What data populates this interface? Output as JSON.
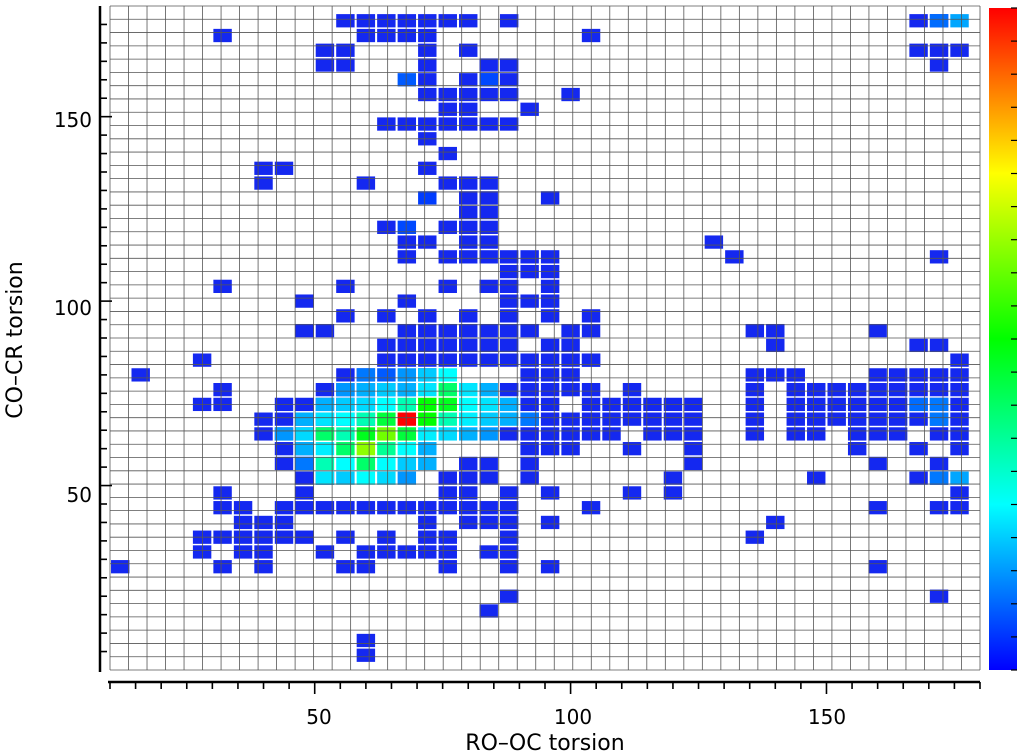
{
  "chart_data": {
    "type": "heatmap",
    "xlabel": "RO–OC torsion",
    "ylabel": "CO–CR torsion",
    "xlim": [
      10,
      180
    ],
    "ylim": [
      0,
      180
    ],
    "bin_width": 3.6,
    "x_ticks": [
      "50",
      "100",
      "150"
    ],
    "y_ticks": [
      "50",
      "100",
      "150"
    ],
    "colorbar": {
      "position": "right",
      "colors": [
        "#0000ff",
        "#00ffff",
        "#00ff00",
        "#ffff00",
        "#ff0000"
      ]
    },
    "grid": true,
    "low_cells": [
      [
        56,
        176
      ],
      [
        60,
        176
      ],
      [
        64,
        176
      ],
      [
        68,
        176
      ],
      [
        72,
        176
      ],
      [
        76,
        176
      ],
      [
        80,
        176
      ],
      [
        88,
        176
      ],
      [
        168,
        176
      ],
      [
        172,
        176
      ],
      [
        32,
        172
      ],
      [
        60,
        172
      ],
      [
        64,
        172
      ],
      [
        68,
        172
      ],
      [
        72,
        172
      ],
      [
        104,
        172
      ],
      [
        52,
        168
      ],
      [
        56,
        168
      ],
      [
        72,
        168
      ],
      [
        80,
        168
      ],
      [
        168,
        168
      ],
      [
        172,
        168
      ],
      [
        176,
        168
      ],
      [
        52,
        164
      ],
      [
        56,
        164
      ],
      [
        72,
        164
      ],
      [
        84,
        164
      ],
      [
        88,
        164
      ],
      [
        172,
        164
      ],
      [
        72,
        160
      ],
      [
        80,
        160
      ],
      [
        84,
        160
      ],
      [
        88,
        160
      ],
      [
        72,
        156
      ],
      [
        76,
        156
      ],
      [
        80,
        156
      ],
      [
        84,
        156
      ],
      [
        88,
        156
      ],
      [
        100,
        156
      ],
      [
        76,
        152
      ],
      [
        80,
        152
      ],
      [
        92,
        152
      ],
      [
        64,
        148
      ],
      [
        68,
        148
      ],
      [
        72,
        148
      ],
      [
        76,
        148
      ],
      [
        80,
        148
      ],
      [
        84,
        148
      ],
      [
        88,
        148
      ],
      [
        72,
        144
      ],
      [
        76,
        140
      ],
      [
        40,
        136
      ],
      [
        44,
        136
      ],
      [
        72,
        136
      ],
      [
        40,
        132
      ],
      [
        60,
        132
      ],
      [
        76,
        132
      ],
      [
        80,
        132
      ],
      [
        84,
        132
      ],
      [
        80,
        128
      ],
      [
        84,
        128
      ],
      [
        96,
        128
      ],
      [
        80,
        124
      ],
      [
        84,
        124
      ],
      [
        64,
        120
      ],
      [
        76,
        120
      ],
      [
        80,
        120
      ],
      [
        84,
        120
      ],
      [
        68,
        116
      ],
      [
        72,
        116
      ],
      [
        80,
        116
      ],
      [
        84,
        116
      ],
      [
        128,
        116
      ],
      [
        68,
        112
      ],
      [
        76,
        112
      ],
      [
        80,
        112
      ],
      [
        84,
        112
      ],
      [
        88,
        112
      ],
      [
        92,
        112
      ],
      [
        96,
        112
      ],
      [
        132,
        112
      ],
      [
        172,
        112
      ],
      [
        88,
        108
      ],
      [
        92,
        108
      ],
      [
        96,
        108
      ],
      [
        32,
        104
      ],
      [
        56,
        104
      ],
      [
        76,
        104
      ],
      [
        84,
        104
      ],
      [
        88,
        104
      ],
      [
        96,
        104
      ],
      [
        48,
        100
      ],
      [
        68,
        100
      ],
      [
        88,
        100
      ],
      [
        92,
        100
      ],
      [
        96,
        100
      ],
      [
        56,
        96
      ],
      [
        64,
        96
      ],
      [
        72,
        96
      ],
      [
        80,
        96
      ],
      [
        88,
        96
      ],
      [
        96,
        96
      ],
      [
        104,
        96
      ],
      [
        48,
        92
      ],
      [
        52,
        92
      ],
      [
        68,
        92
      ],
      [
        72,
        92
      ],
      [
        76,
        92
      ],
      [
        80,
        92
      ],
      [
        84,
        92
      ],
      [
        88,
        92
      ],
      [
        92,
        92
      ],
      [
        100,
        92
      ],
      [
        104,
        92
      ],
      [
        136,
        92
      ],
      [
        140,
        92
      ],
      [
        160,
        92
      ],
      [
        64,
        88
      ],
      [
        68,
        88
      ],
      [
        72,
        88
      ],
      [
        76,
        88
      ],
      [
        80,
        88
      ],
      [
        84,
        88
      ],
      [
        88,
        88
      ],
      [
        96,
        88
      ],
      [
        100,
        88
      ],
      [
        140,
        88
      ],
      [
        168,
        88
      ],
      [
        172,
        88
      ],
      [
        28,
        84
      ],
      [
        64,
        84
      ],
      [
        68,
        84
      ],
      [
        72,
        84
      ],
      [
        76,
        84
      ],
      [
        80,
        84
      ],
      [
        84,
        84
      ],
      [
        88,
        84
      ],
      [
        92,
        84
      ],
      [
        96,
        84
      ],
      [
        100,
        84
      ],
      [
        104,
        84
      ],
      [
        104,
        84
      ],
      [
        176,
        84
      ],
      [
        16,
        80
      ],
      [
        56,
        80
      ],
      [
        60,
        80
      ],
      [
        72,
        80
      ],
      [
        92,
        80
      ],
      [
        96,
        80
      ],
      [
        100,
        80
      ],
      [
        136,
        80
      ],
      [
        140,
        80
      ],
      [
        144,
        80
      ],
      [
        160,
        80
      ],
      [
        164,
        80
      ],
      [
        168,
        80
      ],
      [
        172,
        80
      ],
      [
        176,
        80
      ],
      [
        32,
        76
      ],
      [
        52,
        76
      ],
      [
        56,
        76
      ],
      [
        60,
        76
      ],
      [
        64,
        76
      ],
      [
        68,
        76
      ],
      [
        88,
        76
      ],
      [
        92,
        76
      ],
      [
        96,
        76
      ],
      [
        100,
        76
      ],
      [
        104,
        76
      ],
      [
        112,
        76
      ],
      [
        136,
        76
      ],
      [
        144,
        76
      ],
      [
        148,
        76
      ],
      [
        152,
        76
      ],
      [
        156,
        76
      ],
      [
        160,
        76
      ],
      [
        164,
        76
      ],
      [
        168,
        76
      ],
      [
        172,
        76
      ],
      [
        176,
        76
      ],
      [
        28,
        72
      ],
      [
        32,
        72
      ],
      [
        44,
        72
      ],
      [
        48,
        72
      ],
      [
        52,
        72
      ],
      [
        56,
        72
      ],
      [
        60,
        72
      ],
      [
        92,
        72
      ],
      [
        96,
        72
      ],
      [
        104,
        72
      ],
      [
        108,
        72
      ],
      [
        112,
        72
      ],
      [
        116,
        72
      ],
      [
        120,
        72
      ],
      [
        124,
        72
      ],
      [
        136,
        72
      ],
      [
        144,
        72
      ],
      [
        148,
        72
      ],
      [
        152,
        72
      ],
      [
        156,
        72
      ],
      [
        160,
        72
      ],
      [
        164,
        72
      ],
      [
        168,
        72
      ],
      [
        172,
        72
      ],
      [
        176,
        72
      ],
      [
        40,
        68
      ],
      [
        44,
        68
      ],
      [
        48,
        68
      ],
      [
        52,
        68
      ],
      [
        56,
        68
      ],
      [
        60,
        68
      ],
      [
        92,
        68
      ],
      [
        96,
        68
      ],
      [
        100,
        68
      ],
      [
        104,
        68
      ],
      [
        108,
        68
      ],
      [
        112,
        68
      ],
      [
        116,
        68
      ],
      [
        120,
        68
      ],
      [
        124,
        68
      ],
      [
        136,
        68
      ],
      [
        144,
        68
      ],
      [
        148,
        68
      ],
      [
        152,
        68
      ],
      [
        156,
        68
      ],
      [
        160,
        68
      ],
      [
        164,
        68
      ],
      [
        168,
        68
      ],
      [
        172,
        68
      ],
      [
        176,
        68
      ],
      [
        40,
        64
      ],
      [
        44,
        64
      ],
      [
        48,
        64
      ],
      [
        52,
        64
      ],
      [
        88,
        64
      ],
      [
        92,
        64
      ],
      [
        96,
        64
      ],
      [
        100,
        64
      ],
      [
        104,
        64
      ],
      [
        108,
        64
      ],
      [
        116,
        64
      ],
      [
        120,
        64
      ],
      [
        124,
        64
      ],
      [
        136,
        64
      ],
      [
        144,
        64
      ],
      [
        148,
        64
      ],
      [
        156,
        64
      ],
      [
        160,
        64
      ],
      [
        164,
        64
      ],
      [
        172,
        64
      ],
      [
        176,
        64
      ],
      [
        44,
        60
      ],
      [
        48,
        60
      ],
      [
        92,
        60
      ],
      [
        96,
        60
      ],
      [
        100,
        60
      ],
      [
        112,
        60
      ],
      [
        124,
        60
      ],
      [
        156,
        60
      ],
      [
        168,
        60
      ],
      [
        176,
        60
      ],
      [
        44,
        56
      ],
      [
        48,
        56
      ],
      [
        80,
        56
      ],
      [
        84,
        56
      ],
      [
        92,
        56
      ],
      [
        124,
        56
      ],
      [
        160,
        56
      ],
      [
        172,
        56
      ],
      [
        48,
        52
      ],
      [
        52,
        52
      ],
      [
        76,
        52
      ],
      [
        80,
        52
      ],
      [
        84,
        52
      ],
      [
        92,
        52
      ],
      [
        120,
        52
      ],
      [
        148,
        52
      ],
      [
        168,
        52
      ],
      [
        172,
        52
      ],
      [
        32,
        48
      ],
      [
        48,
        48
      ],
      [
        76,
        48
      ],
      [
        80,
        48
      ],
      [
        88,
        48
      ],
      [
        96,
        48
      ],
      [
        112,
        48
      ],
      [
        120,
        48
      ],
      [
        176,
        48
      ],
      [
        32,
        44
      ],
      [
        36,
        44
      ],
      [
        44,
        44
      ],
      [
        48,
        44
      ],
      [
        52,
        44
      ],
      [
        56,
        44
      ],
      [
        60,
        44
      ],
      [
        64,
        44
      ],
      [
        68,
        44
      ],
      [
        72,
        44
      ],
      [
        76,
        44
      ],
      [
        80,
        44
      ],
      [
        84,
        44
      ],
      [
        88,
        44
      ],
      [
        104,
        44
      ],
      [
        160,
        44
      ],
      [
        172,
        44
      ],
      [
        176,
        44
      ],
      [
        36,
        40
      ],
      [
        40,
        40
      ],
      [
        44,
        40
      ],
      [
        72,
        40
      ],
      [
        80,
        40
      ],
      [
        84,
        40
      ],
      [
        88,
        40
      ],
      [
        96,
        40
      ],
      [
        140,
        40
      ],
      [
        28,
        36
      ],
      [
        32,
        36
      ],
      [
        36,
        36
      ],
      [
        40,
        36
      ],
      [
        44,
        36
      ],
      [
        48,
        36
      ],
      [
        56,
        36
      ],
      [
        64,
        36
      ],
      [
        72,
        36
      ],
      [
        76,
        36
      ],
      [
        88,
        36
      ],
      [
        136,
        36
      ],
      [
        28,
        32
      ],
      [
        36,
        32
      ],
      [
        40,
        32
      ],
      [
        52,
        32
      ],
      [
        60,
        32
      ],
      [
        64,
        32
      ],
      [
        68,
        32
      ],
      [
        72,
        32
      ],
      [
        76,
        32
      ],
      [
        84,
        32
      ],
      [
        88,
        32
      ],
      [
        12,
        28
      ],
      [
        32,
        28
      ],
      [
        40,
        28
      ],
      [
        56,
        28
      ],
      [
        60,
        28
      ],
      [
        76,
        28
      ],
      [
        88,
        28
      ],
      [
        96,
        28
      ],
      [
        160,
        28
      ],
      [
        172,
        20
      ],
      [
        88,
        20
      ],
      [
        84,
        16
      ],
      [
        60,
        8
      ],
      [
        60,
        4
      ]
    ],
    "hot_cells": [
      [
        172,
        176,
        0.18
      ],
      [
        176,
        176,
        0.28
      ],
      [
        68,
        160,
        0.15
      ],
      [
        84,
        160,
        0.12
      ],
      [
        72,
        128,
        0.1
      ],
      [
        68,
        120,
        0.12
      ],
      [
        60,
        80,
        0.2
      ],
      [
        72,
        80,
        0.35
      ],
      [
        76,
        80,
        0.45
      ],
      [
        64,
        80,
        0.15
      ],
      [
        68,
        80,
        0.25
      ],
      [
        56,
        76,
        0.25
      ],
      [
        60,
        76,
        0.3
      ],
      [
        64,
        76,
        0.35
      ],
      [
        68,
        76,
        0.3
      ],
      [
        72,
        76,
        0.4
      ],
      [
        76,
        76,
        0.55
      ],
      [
        80,
        76,
        0.4
      ],
      [
        84,
        76,
        0.3
      ],
      [
        52,
        72,
        0.3
      ],
      [
        56,
        72,
        0.35
      ],
      [
        60,
        72,
        0.38
      ],
      [
        64,
        72,
        0.45
      ],
      [
        68,
        72,
        0.5
      ],
      [
        72,
        72,
        0.62
      ],
      [
        76,
        72,
        0.6
      ],
      [
        80,
        72,
        0.45
      ],
      [
        84,
        72,
        0.4
      ],
      [
        88,
        72,
        0.3
      ],
      [
        168,
        72,
        0.18
      ],
      [
        172,
        72,
        0.2
      ],
      [
        48,
        68,
        0.3
      ],
      [
        52,
        68,
        0.4
      ],
      [
        56,
        68,
        0.45
      ],
      [
        60,
        68,
        0.5
      ],
      [
        64,
        68,
        0.58
      ],
      [
        68,
        68,
        1.0
      ],
      [
        72,
        68,
        0.62
      ],
      [
        76,
        68,
        0.5
      ],
      [
        80,
        68,
        0.42
      ],
      [
        84,
        68,
        0.35
      ],
      [
        88,
        68,
        0.3
      ],
      [
        92,
        68,
        0.2
      ],
      [
        172,
        68,
        0.2
      ],
      [
        44,
        64,
        0.25
      ],
      [
        48,
        64,
        0.38
      ],
      [
        52,
        64,
        0.55
      ],
      [
        56,
        64,
        0.5
      ],
      [
        60,
        64,
        0.6
      ],
      [
        64,
        64,
        0.7
      ],
      [
        68,
        64,
        0.58
      ],
      [
        72,
        64,
        0.42
      ],
      [
        76,
        64,
        0.38
      ],
      [
        80,
        64,
        0.3
      ],
      [
        84,
        64,
        0.25
      ],
      [
        48,
        60,
        0.3
      ],
      [
        52,
        60,
        0.42
      ],
      [
        56,
        60,
        0.55
      ],
      [
        60,
        60,
        0.72
      ],
      [
        64,
        60,
        0.52
      ],
      [
        68,
        60,
        0.45
      ],
      [
        72,
        60,
        0.3
      ],
      [
        48,
        56,
        0.2
      ],
      [
        52,
        56,
        0.5
      ],
      [
        56,
        56,
        0.45
      ],
      [
        60,
        56,
        0.55
      ],
      [
        64,
        56,
        0.45
      ],
      [
        68,
        56,
        0.35
      ],
      [
        72,
        56,
        0.3
      ],
      [
        52,
        52,
        0.4
      ],
      [
        56,
        52,
        0.35
      ],
      [
        60,
        52,
        0.45
      ],
      [
        64,
        52,
        0.38
      ],
      [
        68,
        52,
        0.25
      ],
      [
        172,
        52,
        0.2
      ],
      [
        176,
        52,
        0.28
      ]
    ]
  }
}
